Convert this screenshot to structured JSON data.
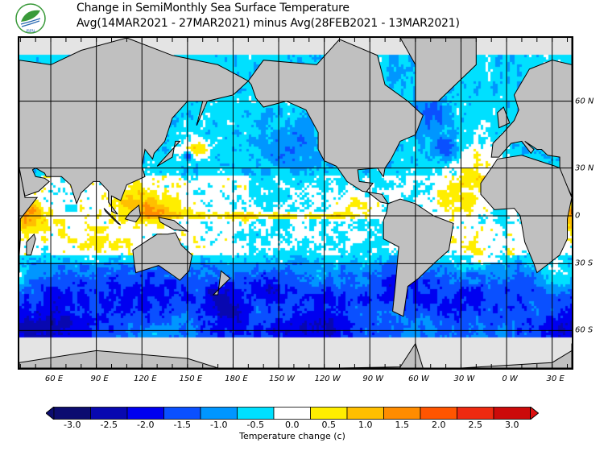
{
  "logo": {
    "text": "สสน",
    "colors": {
      "green": "#3a9a3a",
      "blue": "#2a6ab0"
    }
  },
  "header": {
    "title": "Change in SemiMonthly Sea Surface Temperature",
    "subtitle": "Avg(14MAR2021 - 27MAR2021) minus Avg(28FEB2021 - 13MAR2021)"
  },
  "map": {
    "longitude_labels": [
      {
        "lon": 60,
        "label": "60 E"
      },
      {
        "lon": 90,
        "label": "90 E"
      },
      {
        "lon": 120,
        "label": "120 E"
      },
      {
        "lon": 150,
        "label": "150 E"
      },
      {
        "lon": 180,
        "label": "180 E"
      },
      {
        "lon": 210,
        "label": "150 W"
      },
      {
        "lon": 240,
        "label": "120 W"
      },
      {
        "lon": 270,
        "label": "90 W"
      },
      {
        "lon": 300,
        "label": "60 W"
      },
      {
        "lon": 330,
        "label": "30 W"
      },
      {
        "lon": 360,
        "label": "0 W"
      },
      {
        "lon": 390,
        "label": "30 E"
      }
    ],
    "latitude_labels": [
      {
        "lat": 60,
        "label": "60 N"
      },
      {
        "lat": 30,
        "label": "30 N"
      },
      {
        "lat": 0,
        "label": "0"
      },
      {
        "lat": -30,
        "label": "30 S"
      },
      {
        "lat": -60,
        "label": "60 S"
      }
    ],
    "colors": {
      "land": "#c0c0c0",
      "nodata": "#e4e4e4",
      "ocean": "#ffffff",
      "coast": "#000000"
    }
  },
  "colorbar": {
    "label": "Temperature change  (c)",
    "ticks": [
      "-3.0",
      "-2.5",
      "-2.0",
      "-1.5",
      "-1.0",
      "-0.5",
      "0.0",
      "0.5",
      "1.0",
      "1.5",
      "2.0",
      "2.5",
      "3.0"
    ],
    "colors": [
      "#0c0c70",
      "#0808b0",
      "#0000f0",
      "#0a50ff",
      "#0096ff",
      "#00e0ff",
      "#ffffff",
      "#ffee00",
      "#ffbf00",
      "#ff8c00",
      "#ff5500",
      "#ee2a10",
      "#cc0a0a"
    ],
    "under_color": "#0c0c70",
    "over_color": "#dd1010"
  }
}
